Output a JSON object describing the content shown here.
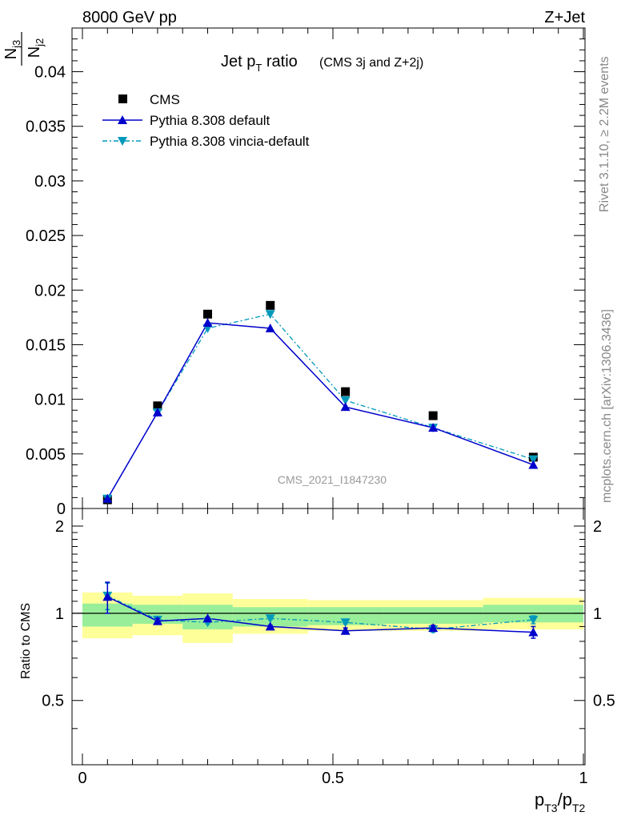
{
  "header": {
    "left": "8000 GeV pp",
    "right": "Z+Jet"
  },
  "side": {
    "rivet": "Rivet 3.1.10, ≥ 2.2M events",
    "mcplots": "mcplots.cern.ch [arXiv:1306.3436]"
  },
  "watermark": "CMS_2021_I1847230",
  "chart_data": {
    "type": "line",
    "title": {
      "main": "Jet p",
      "sub": "T",
      "rest": " ratio",
      "small": "(CMS 3j and Z+2j)"
    },
    "ylabel": {
      "num": "N",
      "num_sub": "j3",
      "den": "N",
      "den_sub": "j2"
    },
    "ratio_ylabel": "Ratio to CMS",
    "xlabel": {
      "a": "p",
      "a_sub": "T3",
      "slash": "/p",
      "b_sub": "T2"
    },
    "xlim": [
      0,
      1
    ],
    "ylim": [
      0,
      0.044
    ],
    "ratio_ylim": [
      0.3,
      2.3
    ],
    "x_ticks": [
      "0",
      "0.5",
      "1"
    ],
    "y_ticks": [
      "0",
      "0.005",
      "0.01",
      "0.015",
      "0.02",
      "0.025",
      "0.03",
      "0.035",
      "0.04"
    ],
    "ratio_ticks": [
      "0.5",
      "1",
      "2"
    ],
    "x": [
      0.05,
      0.15,
      0.25,
      0.375,
      0.525,
      0.7,
      0.9
    ],
    "bin_edges": [
      0,
      0.1,
      0.2,
      0.3,
      0.45,
      0.6,
      0.8,
      1.0
    ],
    "legend_position": "top-left",
    "series": [
      {
        "name": "CMS",
        "color": "#000000",
        "marker": "square",
        "values": [
          0.0008,
          0.0094,
          0.0178,
          0.0186,
          0.0107,
          0.0085,
          0.0047
        ]
      },
      {
        "name": "Pythia 8.308 default",
        "color": "#0000cc",
        "marker": "triangle-up",
        "values": [
          0.0009,
          0.0088,
          0.017,
          0.0165,
          0.0093,
          0.0074,
          0.004
        ]
      },
      {
        "name": "Pythia 8.308 vincia-default",
        "color": "#0099bb",
        "marker": "triangle-down",
        "values": [
          0.0009,
          0.0088,
          0.0165,
          0.0178,
          0.0099,
          0.0074,
          0.0045
        ]
      }
    ],
    "ratio": {
      "default": [
        1.14,
        0.94,
        0.96,
        0.9,
        0.87,
        0.89,
        0.86
      ],
      "default_err": [
        0.14,
        0.02,
        0.01,
        0.01,
        0.02,
        0.02,
        0.04
      ],
      "vincia": [
        1.15,
        0.95,
        0.93,
        0.96,
        0.93,
        0.88,
        0.95
      ],
      "vincia_err": [
        0.12,
        0.02,
        0.01,
        0.01,
        0.01,
        0.02,
        0.03
      ],
      "band_inner": [
        [
          0.9,
          1.08
        ],
        [
          0.92,
          1.07
        ],
        [
          0.88,
          1.07
        ],
        [
          0.9,
          1.05
        ],
        [
          0.91,
          1.05
        ],
        [
          0.92,
          1.05
        ],
        [
          0.93,
          1.07
        ]
      ],
      "band_outer": [
        [
          0.82,
          1.18
        ],
        [
          0.84,
          1.15
        ],
        [
          0.79,
          1.17
        ],
        [
          0.85,
          1.12
        ],
        [
          0.87,
          1.11
        ],
        [
          0.87,
          1.11
        ],
        [
          0.88,
          1.13
        ]
      ],
      "band_inner_color": "#99ee99",
      "band_outer_color": "#ffff99"
    }
  }
}
